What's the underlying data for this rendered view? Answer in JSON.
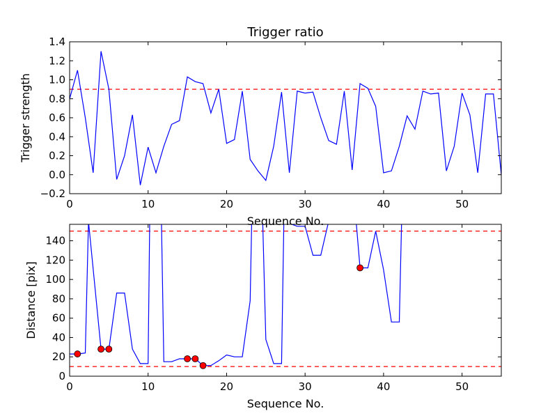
{
  "chart_data": [
    {
      "type": "line",
      "title": "Trigger ratio",
      "xlabel": "Sequence No.",
      "ylabel": "Trigger strength",
      "xlim": [
        0,
        55
      ],
      "ylim": [
        -0.2,
        1.4
      ],
      "xticks": [
        "0",
        "10",
        "20",
        "30",
        "40",
        "50"
      ],
      "yticks": [
        "−0.2",
        "0.0",
        "0.2",
        "0.4",
        "0.6",
        "0.8",
        "1.0",
        "1.2",
        "1.4"
      ],
      "threshold": 0.9,
      "grid": false,
      "series": [
        {
          "color": "#0000ff",
          "x": [
            0,
            1,
            2,
            3,
            4,
            5,
            6,
            7,
            8,
            9,
            10,
            11,
            12,
            13,
            14,
            15,
            16,
            17,
            18,
            19,
            20,
            21,
            22,
            23,
            24,
            25,
            26,
            27,
            28,
            29,
            30,
            31,
            32,
            33,
            34,
            35,
            36,
            37,
            38,
            39,
            40,
            41,
            42,
            43,
            44,
            45,
            46,
            47,
            48,
            49,
            50,
            51,
            52,
            53,
            54,
            55
          ],
          "y": [
            0.8,
            1.1,
            0.6,
            0.02,
            1.3,
            0.9,
            -0.05,
            0.2,
            0.63,
            -0.11,
            0.29,
            0.02,
            0.3,
            0.53,
            0.57,
            1.03,
            0.98,
            0.96,
            0.65,
            0.9,
            0.33,
            0.37,
            0.88,
            0.16,
            0.04,
            -0.06,
            0.3,
            0.87,
            0.02,
            0.88,
            0.86,
            0.87,
            0.6,
            0.36,
            0.32,
            0.88,
            0.05,
            0.96,
            0.91,
            0.72,
            0.02,
            0.04,
            0.3,
            0.62,
            0.48,
            0.88,
            0.85,
            0.86,
            0.04,
            0.3,
            0.86,
            0.63,
            0.02,
            0.85,
            0.85,
            0.0
          ]
        }
      ]
    },
    {
      "type": "line",
      "title": "",
      "xlabel": "Sequence No.",
      "ylabel": "Distance [pix]",
      "xlim": [
        0,
        55
      ],
      "ylim": [
        0,
        157
      ],
      "xticks": [
        "0",
        "10",
        "20",
        "30",
        "40",
        "50"
      ],
      "yticks": [
        "0",
        "20",
        "40",
        "60",
        "80",
        "100",
        "120",
        "140"
      ],
      "thresholds": [
        10,
        150
      ],
      "grid": false,
      "series": [
        {
          "color": "#0000ff",
          "x": [
            0,
            1,
            2,
            2.4,
            4,
            5,
            6,
            7,
            8,
            9,
            10,
            10.2,
            11.7,
            12,
            13,
            14,
            15,
            16,
            17,
            18,
            19,
            20,
            21,
            22,
            23,
            23.2,
            24.6,
            25,
            26,
            27,
            27.3,
            29,
            30,
            31,
            32,
            33,
            36.5,
            37,
            38,
            39,
            40,
            41,
            42,
            42.3
          ],
          "y": [
            23,
            23,
            24,
            160,
            28,
            28,
            86,
            86,
            28,
            13,
            13,
            160,
            160,
            15,
            15,
            18,
            18,
            18,
            11,
            11,
            16,
            22,
            20,
            20,
            78,
            160,
            160,
            38,
            13,
            13,
            160,
            155,
            155,
            125,
            125,
            160,
            160,
            112,
            112,
            150,
            110,
            56,
            56,
            160
          ]
        }
      ],
      "markers": {
        "color": "#ff0000",
        "x": [
          1,
          4,
          5,
          15,
          16,
          17,
          37
        ],
        "y": [
          23,
          28,
          28,
          18,
          18,
          11,
          112
        ]
      }
    }
  ]
}
